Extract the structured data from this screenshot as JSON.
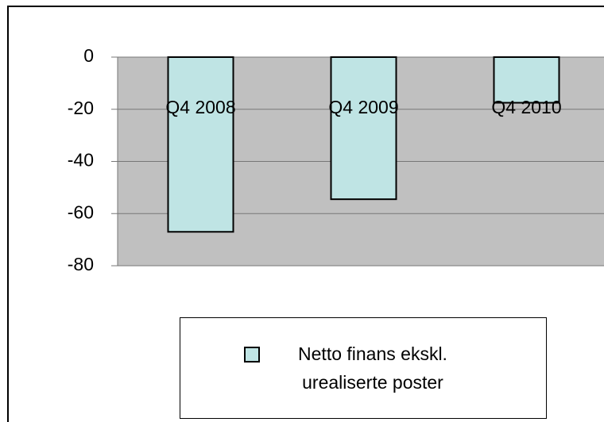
{
  "chart_data": {
    "type": "bar",
    "categories": [
      "Q4 2008",
      "Q4 2009",
      "Q4 2010"
    ],
    "series": [
      {
        "name": "Netto finans ekskl. urealiserte poster",
        "color": "#bfe4e4",
        "values": [
          -67,
          -54.5,
          -17.5
        ]
      }
    ],
    "ylim": [
      -80,
      0
    ],
    "yticks": [
      0,
      -20,
      -40,
      -60,
      -80
    ],
    "grid": true,
    "legend": "bottom"
  }
}
